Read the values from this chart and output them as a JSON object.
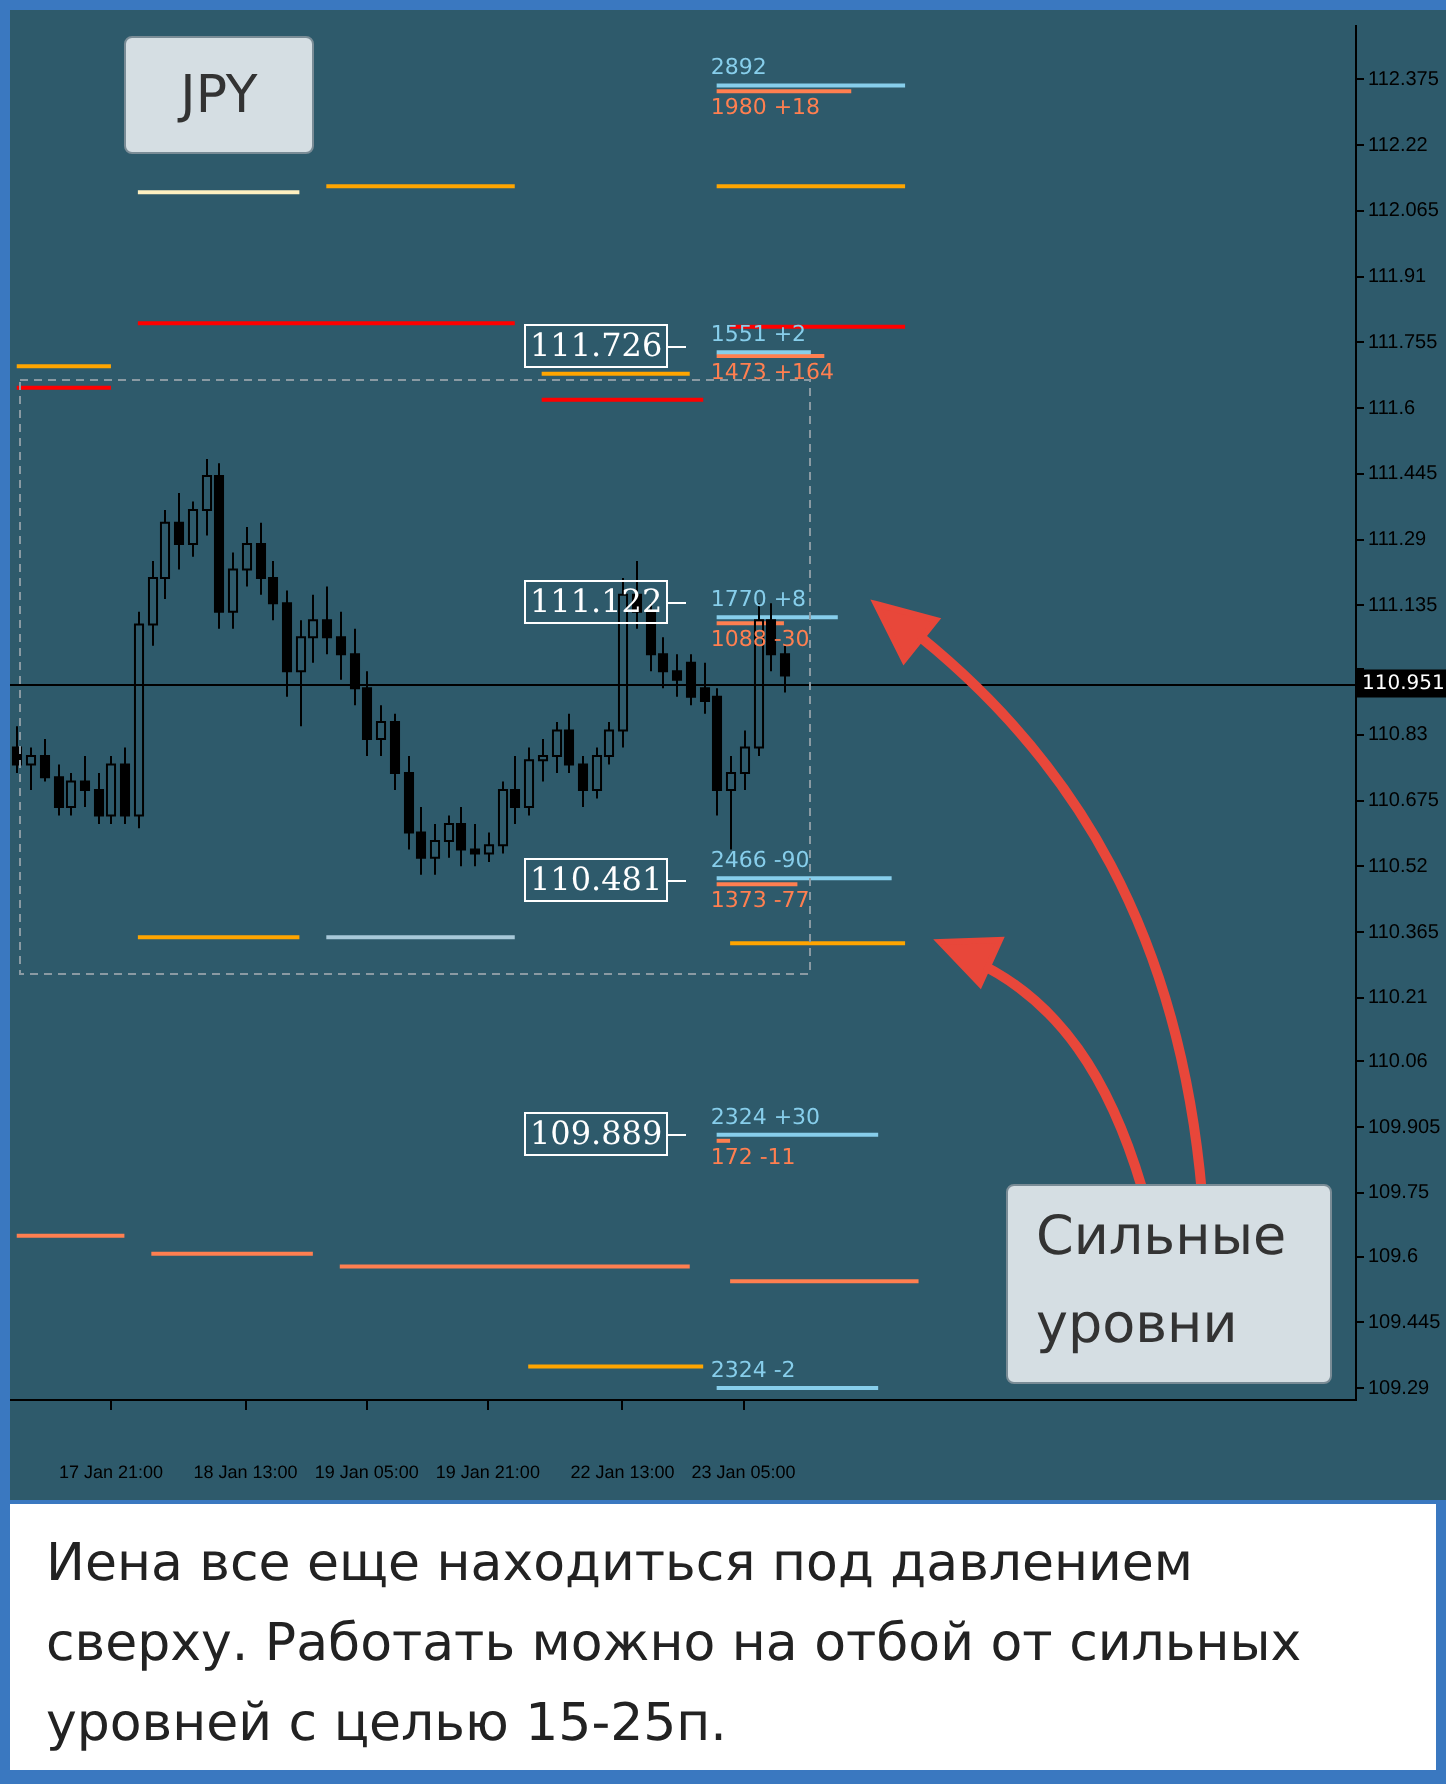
{
  "chart_data": {
    "type": "candlestick",
    "title": "JPY",
    "color": "#000000",
    "categories": [
      null,
      null,
      null,
      null,
      null,
      null,
      null,
      "17 Jan 21:00",
      null,
      null,
      null,
      null,
      null,
      null,
      null,
      null,
      null,
      "18 Jan 13:00",
      null,
      null,
      null,
      null,
      null,
      null,
      null,
      null,
      "19 Jan 05:00",
      null,
      null,
      null,
      null,
      null,
      null,
      null,
      null,
      "19 Jan 21:00",
      null,
      null,
      null,
      null,
      null,
      null,
      null,
      null,
      null,
      "22 Jan 13:00",
      null,
      null,
      null,
      null,
      null,
      null,
      null,
      null,
      "23 Jan 05:00",
      null,
      null,
      null,
      null,
      null,
      null,
      null,
      null,
      null,
      null,
      null,
      null,
      null,
      null,
      null,
      null,
      null,
      null,
      null,
      null,
      null,
      null,
      null,
      null,
      null,
      null,
      null,
      null,
      null,
      null,
      null,
      null,
      null,
      null,
      null,
      null,
      null,
      null,
      null,
      null,
      null,
      null,
      null,
      null,
      null
    ],
    "ohlc": [
      [
        110.8,
        110.85,
        110.74,
        110.76
      ],
      [
        110.76,
        110.8,
        110.7,
        110.78
      ],
      [
        110.78,
        110.82,
        110.72,
        110.73
      ],
      [
        110.73,
        110.76,
        110.64,
        110.66
      ],
      [
        110.66,
        110.74,
        110.64,
        110.72
      ],
      [
        110.72,
        110.78,
        110.66,
        110.7
      ],
      [
        110.7,
        110.74,
        110.62,
        110.64
      ],
      [
        110.64,
        110.78,
        110.62,
        110.76
      ],
      [
        110.76,
        110.8,
        110.62,
        110.64
      ],
      [
        110.64,
        111.12,
        110.61,
        111.09
      ],
      [
        111.09,
        111.24,
        111.04,
        111.2
      ],
      [
        111.2,
        111.36,
        111.15,
        111.33
      ],
      [
        111.33,
        111.4,
        111.22,
        111.28
      ],
      [
        111.28,
        111.38,
        111.25,
        111.36
      ],
      [
        111.36,
        111.48,
        111.3,
        111.44
      ],
      [
        111.44,
        111.47,
        111.08,
        111.12
      ],
      [
        111.12,
        111.26,
        111.08,
        111.22
      ],
      [
        111.22,
        111.32,
        111.18,
        111.28
      ],
      [
        111.28,
        111.33,
        111.16,
        111.2
      ],
      [
        111.2,
        111.24,
        111.1,
        111.14
      ],
      [
        111.14,
        111.17,
        110.92,
        110.98
      ],
      [
        110.98,
        111.1,
        110.85,
        111.06
      ],
      [
        111.06,
        111.16,
        111.0,
        111.1
      ],
      [
        111.1,
        111.18,
        111.02,
        111.06
      ],
      [
        111.06,
        111.12,
        110.96,
        111.02
      ],
      [
        111.02,
        111.08,
        110.9,
        110.94
      ],
      [
        110.94,
        110.98,
        110.78,
        110.82
      ],
      [
        110.82,
        110.9,
        110.78,
        110.86
      ],
      [
        110.86,
        110.88,
        110.7,
        110.74
      ],
      [
        110.74,
        110.78,
        110.56,
        110.6
      ],
      [
        110.6,
        110.66,
        110.5,
        110.54
      ],
      [
        110.54,
        110.62,
        110.5,
        110.58
      ],
      [
        110.58,
        110.64,
        110.54,
        110.62
      ],
      [
        110.62,
        110.66,
        110.52,
        110.56
      ],
      [
        110.56,
        110.62,
        110.52,
        110.55
      ],
      [
        110.55,
        110.6,
        110.53,
        110.57
      ],
      [
        110.57,
        110.72,
        110.55,
        110.7
      ],
      [
        110.7,
        110.78,
        110.62,
        110.66
      ],
      [
        110.66,
        110.8,
        110.64,
        110.77
      ],
      [
        110.77,
        110.82,
        110.72,
        110.78
      ],
      [
        110.78,
        110.86,
        110.74,
        110.84
      ],
      [
        110.84,
        110.88,
        110.74,
        110.76
      ],
      [
        110.76,
        110.78,
        110.66,
        110.7
      ],
      [
        110.7,
        110.8,
        110.68,
        110.78
      ],
      [
        110.78,
        110.86,
        110.76,
        110.84
      ],
      [
        110.84,
        111.2,
        110.8,
        111.16
      ],
      [
        111.16,
        111.24,
        111.08,
        111.12
      ],
      [
        111.12,
        111.14,
        110.98,
        111.02
      ],
      [
        111.02,
        111.06,
        110.94,
        110.98
      ],
      [
        110.98,
        111.02,
        110.92,
        110.96
      ],
      [
        111.0,
        111.02,
        110.9,
        110.92
      ],
      [
        110.94,
        111.0,
        110.88,
        110.91
      ],
      [
        110.92,
        110.94,
        110.64,
        110.7
      ],
      [
        110.7,
        110.78,
        110.56,
        110.74
      ],
      [
        110.74,
        110.84,
        110.7,
        110.8
      ],
      [
        110.8,
        111.14,
        110.78,
        111.1
      ],
      [
        111.1,
        111.14,
        110.98,
        111.02
      ],
      [
        111.02,
        111.04,
        110.93,
        110.97
      ],
      null,
      null,
      null,
      null,
      null,
      null,
      null,
      null,
      null,
      null,
      null,
      null,
      null,
      null,
      null,
      null,
      null,
      null,
      null,
      null,
      null,
      null,
      null,
      null,
      null,
      null,
      null,
      null,
      null,
      null,
      null,
      null,
      null,
      null,
      null,
      null,
      null,
      null,
      null,
      null,
      null,
      null
    ],
    "series": [
      {
        "type": "line",
        "color": "#ffa500",
        "values": [
          111.699,
          111.699,
          111.699,
          111.699,
          111.699,
          111.699,
          111.699,
          111.699,
          null,
          110.353,
          110.353,
          110.353,
          110.353,
          110.353,
          110.353,
          110.353,
          110.353,
          110.353,
          110.353,
          110.353,
          110.353,
          110.353,
          null,
          112.123,
          112.123,
          112.123,
          112.123,
          112.123,
          112.123,
          112.123,
          112.123,
          112.123,
          112.123,
          112.123,
          112.123,
          112.123,
          112.123,
          112.123,
          null,
          111.681,
          111.681,
          111.681,
          111.681,
          111.681,
          111.681,
          111.681,
          111.681,
          111.681,
          111.681,
          111.681,
          111.681,
          null,
          112.123,
          112.123,
          112.123,
          112.123,
          112.123,
          112.123,
          112.123,
          112.123,
          112.123,
          112.123,
          112.123,
          112.123,
          112.123,
          112.123,
          112.123,
          null,
          null,
          null,
          null,
          null,
          null,
          null,
          null,
          null,
          null,
          null,
          null,
          null,
          null,
          null,
          null,
          null,
          null,
          null,
          null,
          null,
          null,
          null,
          null,
          null,
          null,
          null,
          null,
          null,
          null,
          null,
          null,
          null
        ]
      },
      {
        "type": "line",
        "color": "#ffa500",
        "values": [
          null,
          null,
          null,
          null,
          null,
          null,
          null,
          null,
          null,
          null,
          null,
          null,
          null,
          null,
          null,
          null,
          null,
          null,
          null,
          null,
          null,
          null,
          null,
          null,
          null,
          null,
          null,
          null,
          null,
          null,
          null,
          null,
          null,
          null,
          null,
          null,
          null,
          null,
          109.341,
          109.341,
          109.341,
          109.341,
          109.341,
          109.341,
          109.341,
          109.341,
          109.341,
          109.341,
          109.341,
          109.341,
          109.341,
          109.341,
          null,
          110.339,
          110.339,
          110.339,
          110.339,
          110.339,
          110.339,
          110.339,
          110.339,
          110.339,
          110.339,
          110.339,
          110.339,
          110.339,
          110.339,
          null,
          null,
          null,
          null,
          null,
          null,
          null,
          null,
          null,
          null,
          null,
          null,
          null,
          null,
          null,
          null,
          null,
          null,
          null,
          null,
          null,
          null,
          null,
          null,
          null,
          null,
          null,
          null,
          null,
          null,
          null,
          null,
          null
        ]
      },
      {
        "type": "line",
        "color": "#ff0000",
        "values": [
          111.648,
          111.648,
          111.648,
          111.648,
          111.648,
          111.648,
          111.648,
          111.648,
          null,
          111.8,
          111.8,
          111.8,
          111.8,
          111.8,
          111.8,
          111.8,
          111.8,
          111.8,
          111.8,
          111.8,
          111.8,
          111.8,
          111.8,
          111.8,
          111.8,
          111.8,
          111.8,
          111.8,
          111.8,
          111.8,
          111.8,
          111.8,
          111.8,
          111.8,
          111.8,
          111.8,
          111.8,
          111.8,
          null,
          111.62,
          111.62,
          111.62,
          111.62,
          111.62,
          111.62,
          111.62,
          111.62,
          111.62,
          111.62,
          111.62,
          111.62,
          111.62,
          null,
          111.792,
          111.792,
          111.792,
          111.792,
          111.792,
          111.792,
          111.792,
          111.792,
          111.792,
          111.792,
          111.792,
          111.792,
          111.792,
          111.792,
          null,
          null,
          null,
          null,
          null,
          null,
          null,
          null,
          null,
          null,
          null,
          null,
          null,
          null,
          null,
          null,
          null,
          null,
          null,
          null,
          null,
          null,
          null,
          null,
          null,
          null,
          null,
          null,
          null,
          null,
          null,
          null,
          null
        ]
      },
      {
        "type": "line",
        "color": "#fff0c0",
        "values": [
          null,
          null,
          null,
          null,
          null,
          null,
          null,
          null,
          null,
          112.109,
          112.109,
          112.109,
          112.109,
          112.109,
          112.109,
          112.109,
          112.109,
          112.109,
          112.109,
          112.109,
          112.109,
          112.109,
          null,
          null,
          null,
          null,
          null,
          null,
          null,
          null,
          null,
          null,
          null,
          null,
          null,
          null,
          null,
          null,
          null,
          null,
          null,
          null,
          null,
          null,
          null,
          null,
          null,
          null,
          null,
          null,
          null,
          null,
          null,
          null,
          null,
          null,
          null,
          null,
          null,
          null,
          null,
          null,
          null,
          null,
          null,
          null,
          null,
          null,
          null,
          null,
          null,
          null,
          null,
          null,
          null,
          null,
          null,
          null,
          null,
          null,
          null,
          null,
          null,
          null,
          null,
          null,
          null,
          null,
          null,
          null,
          null,
          null,
          null,
          null,
          null,
          null,
          null,
          null,
          null,
          null
        ]
      },
      {
        "type": "line",
        "color": "#a8c8d8",
        "values": [
          null,
          null,
          null,
          null,
          null,
          null,
          null,
          null,
          null,
          null,
          null,
          null,
          null,
          null,
          null,
          null,
          null,
          null,
          null,
          null,
          null,
          null,
          null,
          110.353,
          110.353,
          110.353,
          110.353,
          110.353,
          110.353,
          110.353,
          110.353,
          110.353,
          110.353,
          110.353,
          110.353,
          110.353,
          110.353,
          110.353,
          null,
          null,
          null,
          null,
          null,
          null,
          null,
          null,
          null,
          null,
          null,
          null,
          null,
          null,
          null,
          null,
          null,
          null,
          null,
          null,
          null,
          null,
          null,
          null,
          null,
          null,
          null,
          null,
          null,
          null,
          null,
          null,
          null,
          null,
          null,
          null,
          null,
          null,
          null,
          null,
          null,
          null,
          null,
          null,
          null,
          null,
          null,
          null,
          null,
          null,
          null,
          null,
          null,
          null,
          null,
          null,
          null,
          null,
          null,
          null,
          null,
          null
        ]
      },
      {
        "type": "line",
        "color": "#87ceeb",
        "values": [
          null,
          null,
          null,
          null,
          null,
          null,
          null,
          null,
          null,
          null,
          null,
          null,
          null,
          null,
          null,
          null,
          null,
          null,
          null,
          null,
          null,
          null,
          null,
          null,
          null,
          null,
          null,
          null,
          null,
          null,
          null,
          null,
          null,
          null,
          null,
          null,
          null,
          null,
          null,
          null,
          null,
          null,
          null,
          null,
          null,
          null,
          null,
          null,
          null,
          null,
          null,
          null,
          112.361,
          112.361,
          112.361,
          112.361,
          112.361,
          112.361,
          112.361,
          112.361,
          112.361,
          112.361,
          112.361,
          112.361,
          112.361,
          112.361,
          112.361,
          null,
          null,
          null,
          null,
          null,
          null,
          null,
          null,
          null,
          null,
          null,
          null,
          null,
          null,
          null,
          null,
          null,
          null,
          null,
          null,
          null,
          null,
          null,
          null,
          null,
          null,
          null,
          null,
          null,
          null,
          null,
          null,
          null
        ]
      },
      {
        "type": "line",
        "color": "#87ceeb",
        "values": [
          null,
          null,
          null,
          null,
          null,
          null,
          null,
          null,
          null,
          null,
          null,
          null,
          null,
          null,
          null,
          null,
          null,
          null,
          null,
          null,
          null,
          null,
          null,
          null,
          null,
          null,
          null,
          null,
          null,
          null,
          null,
          null,
          null,
          null,
          null,
          null,
          null,
          null,
          null,
          null,
          null,
          null,
          null,
          null,
          null,
          null,
          null,
          null,
          null,
          null,
          null,
          null,
          111.732,
          111.732,
          111.732,
          111.732,
          111.732,
          111.732,
          111.732,
          111.732,
          null,
          null,
          null,
          null,
          null,
          null,
          null,
          null,
          null,
          null,
          null,
          null,
          null,
          null,
          null,
          null,
          null,
          null,
          null,
          null,
          null,
          null,
          null,
          null,
          null,
          null,
          null,
          null,
          null,
          null,
          null,
          null,
          null,
          null,
          null,
          null,
          null,
          null,
          null,
          null
        ]
      },
      {
        "type": "line",
        "color": "#87ceeb",
        "values": [
          null,
          null,
          null,
          null,
          null,
          null,
          null,
          null,
          null,
          null,
          null,
          null,
          null,
          null,
          null,
          null,
          null,
          null,
          null,
          null,
          null,
          null,
          null,
          null,
          null,
          null,
          null,
          null,
          null,
          null,
          null,
          null,
          null,
          null,
          null,
          null,
          null,
          null,
          null,
          null,
          null,
          null,
          null,
          null,
          null,
          null,
          null,
          null,
          null,
          null,
          null,
          null,
          111.107,
          111.107,
          111.107,
          111.107,
          111.107,
          111.107,
          111.107,
          111.107,
          111.107,
          111.107,
          null,
          null,
          null,
          null,
          null,
          null,
          null,
          null,
          null,
          null,
          null,
          null,
          null,
          null,
          null,
          null,
          null,
          null,
          null,
          null,
          null,
          null,
          null,
          null,
          null,
          null,
          null,
          null,
          null,
          null,
          null,
          null,
          null,
          null,
          null,
          null,
          null,
          null
        ]
      },
      {
        "type": "line",
        "color": "#87ceeb",
        "values": [
          null,
          null,
          null,
          null,
          null,
          null,
          null,
          null,
          null,
          null,
          null,
          null,
          null,
          null,
          null,
          null,
          null,
          null,
          null,
          null,
          null,
          null,
          null,
          null,
          null,
          null,
          null,
          null,
          null,
          null,
          null,
          null,
          null,
          null,
          null,
          null,
          null,
          null,
          null,
          null,
          null,
          null,
          null,
          null,
          null,
          null,
          null,
          null,
          null,
          null,
          null,
          null,
          110.492,
          110.492,
          110.492,
          110.492,
          110.492,
          110.492,
          110.492,
          110.492,
          110.492,
          110.492,
          110.492,
          110.492,
          110.492,
          110.492,
          null,
          null,
          null,
          null,
          null,
          null,
          null,
          null,
          null,
          null,
          null,
          null,
          null,
          null,
          null,
          null,
          null,
          null,
          null,
          null,
          null,
          null,
          null,
          null,
          null,
          null,
          null,
          null,
          null,
          null,
          null,
          null,
          null,
          null
        ]
      },
      {
        "type": "line",
        "color": "#87ceeb",
        "values": [
          null,
          null,
          null,
          null,
          null,
          null,
          null,
          null,
          null,
          null,
          null,
          null,
          null,
          null,
          null,
          null,
          null,
          null,
          null,
          null,
          null,
          null,
          null,
          null,
          null,
          null,
          null,
          null,
          null,
          null,
          null,
          null,
          null,
          null,
          null,
          null,
          null,
          null,
          null,
          null,
          null,
          null,
          null,
          null,
          null,
          null,
          null,
          null,
          null,
          null,
          null,
          null,
          109.887,
          109.887,
          109.887,
          109.887,
          109.887,
          109.887,
          109.887,
          109.887,
          109.887,
          109.887,
          109.887,
          109.887,
          109.887,
          null,
          null,
          null,
          null,
          null,
          null,
          null,
          null,
          null,
          null,
          null,
          null,
          null,
          null,
          null,
          null,
          null,
          null,
          null,
          null,
          null,
          null,
          null,
          null,
          null,
          null,
          null,
          null,
          null,
          null,
          null,
          null,
          null,
          null,
          null
        ]
      },
      {
        "type": "line",
        "color": "#87ceeb",
        "values": [
          null,
          null,
          null,
          null,
          null,
          null,
          null,
          null,
          null,
          null,
          null,
          null,
          null,
          null,
          null,
          null,
          null,
          null,
          null,
          null,
          null,
          null,
          null,
          null,
          null,
          null,
          null,
          null,
          null,
          null,
          null,
          null,
          null,
          null,
          null,
          null,
          null,
          null,
          null,
          null,
          null,
          null,
          null,
          null,
          null,
          null,
          null,
          null,
          null,
          null,
          null,
          null,
          109.29,
          109.29,
          109.29,
          109.29,
          109.29,
          109.29,
          109.29,
          109.29,
          109.29,
          109.29,
          109.29,
          109.29,
          109.29,
          null,
          null,
          null,
          null,
          null,
          null,
          null,
          null,
          null,
          null,
          null,
          null,
          null,
          null,
          null,
          null,
          null,
          null,
          null,
          null,
          null,
          null,
          null,
          null,
          null,
          null,
          null,
          null,
          null,
          null,
          null,
          null,
          null,
          null,
          null
        ]
      },
      {
        "type": "line",
        "color": "#ff7f50",
        "values": [
          109.649,
          109.649,
          109.649,
          109.649,
          109.649,
          109.649,
          109.649,
          109.649,
          109.649,
          null,
          109.607,
          109.607,
          109.607,
          109.607,
          109.607,
          109.607,
          109.607,
          109.607,
          109.607,
          109.607,
          109.607,
          109.607,
          109.607,
          null,
          109.577,
          109.577,
          109.577,
          109.577,
          109.577,
          109.577,
          109.577,
          109.577,
          109.577,
          109.577,
          109.577,
          109.577,
          109.577,
          109.577,
          109.577,
          109.577,
          109.577,
          109.577,
          109.577,
          109.577,
          109.577,
          109.577,
          109.577,
          109.577,
          109.577,
          109.577,
          109.577,
          null,
          112.347,
          112.347,
          112.347,
          112.347,
          112.347,
          112.347,
          112.347,
          112.347,
          112.347,
          112.347,
          112.347,
          null,
          null,
          null,
          null,
          null,
          null,
          null,
          null,
          null,
          null,
          null,
          null,
          null,
          null,
          null,
          null,
          null,
          null,
          null,
          null,
          null,
          null,
          null,
          null,
          null,
          null,
          null,
          null,
          null,
          null,
          null,
          null,
          null,
          null,
          null,
          null,
          null
        ]
      },
      {
        "type": "line",
        "color": "#ff7f50",
        "values": [
          null,
          null,
          null,
          null,
          null,
          null,
          null,
          null,
          null,
          null,
          null,
          null,
          null,
          null,
          null,
          null,
          null,
          null,
          null,
          null,
          null,
          null,
          null,
          null,
          null,
          null,
          null,
          null,
          null,
          null,
          null,
          null,
          null,
          null,
          null,
          null,
          null,
          null,
          null,
          null,
          null,
          null,
          null,
          null,
          null,
          null,
          null,
          null,
          null,
          null,
          null,
          null,
          111.723,
          111.723,
          111.723,
          111.723,
          111.723,
          111.723,
          111.723,
          111.723,
          111.723,
          null,
          null,
          null,
          null,
          null,
          null,
          null,
          null,
          null,
          null,
          null,
          null,
          null,
          null,
          null,
          null,
          null,
          null,
          null,
          null,
          null,
          null,
          null,
          null,
          null,
          null,
          null,
          null,
          null,
          null,
          null,
          null,
          null,
          null,
          null,
          null,
          null,
          null,
          null
        ]
      },
      {
        "type": "line",
        "color": "#ff7f50",
        "values": [
          null,
          null,
          null,
          null,
          null,
          null,
          null,
          null,
          null,
          null,
          null,
          null,
          null,
          null,
          null,
          null,
          null,
          null,
          null,
          null,
          null,
          null,
          null,
          null,
          null,
          null,
          null,
          null,
          null,
          null,
          null,
          null,
          null,
          null,
          null,
          null,
          null,
          null,
          null,
          null,
          null,
          null,
          null,
          null,
          null,
          null,
          null,
          null,
          null,
          null,
          null,
          null,
          111.093,
          111.093,
          111.093,
          111.093,
          111.093,
          111.093,
          null,
          null,
          null,
          null,
          null,
          null,
          null,
          null,
          null,
          null,
          null,
          null,
          null,
          null,
          null,
          null,
          null,
          null,
          null,
          null,
          null,
          null,
          null,
          null,
          null,
          null,
          null,
          null,
          null,
          null,
          null,
          null,
          null,
          null,
          null,
          null,
          null,
          null,
          null,
          null,
          null,
          null
        ]
      },
      {
        "type": "line",
        "color": "#ff7f50",
        "values": [
          null,
          null,
          null,
          null,
          null,
          null,
          null,
          null,
          null,
          null,
          null,
          null,
          null,
          null,
          null,
          null,
          null,
          null,
          null,
          null,
          null,
          null,
          null,
          null,
          null,
          null,
          null,
          null,
          null,
          null,
          null,
          null,
          null,
          null,
          null,
          null,
          null,
          null,
          null,
          null,
          null,
          null,
          null,
          null,
          null,
          null,
          null,
          null,
          null,
          null,
          null,
          null,
          110.478,
          110.478,
          110.478,
          110.478,
          110.478,
          110.478,
          110.478,
          null,
          null,
          null,
          null,
          null,
          null,
          null,
          null,
          null,
          null,
          null,
          null,
          null,
          null,
          null,
          null,
          null,
          null,
          null,
          null,
          null,
          null,
          null,
          null,
          null,
          null,
          null,
          null,
          null,
          null,
          null,
          null,
          null,
          null,
          null,
          null,
          null,
          null,
          null,
          null,
          null
        ]
      },
      {
        "type": "line",
        "color": "#ff7f50",
        "values": [
          null,
          null,
          null,
          null,
          null,
          null,
          null,
          null,
          null,
          null,
          null,
          null,
          null,
          null,
          null,
          null,
          null,
          null,
          null,
          null,
          null,
          null,
          null,
          null,
          null,
          null,
          null,
          null,
          null,
          null,
          null,
          null,
          null,
          null,
          null,
          null,
          null,
          null,
          null,
          null,
          null,
          null,
          null,
          null,
          null,
          null,
          null,
          null,
          null,
          null,
          null,
          null,
          109.873,
          109.873,
          null,
          null,
          null,
          null,
          null,
          null,
          null,
          null,
          null,
          null,
          null,
          null,
          null,
          null,
          null,
          null,
          null,
          null,
          null,
          null,
          null,
          null,
          null,
          null,
          null,
          null,
          null,
          null,
          null,
          null,
          null,
          null,
          null,
          null,
          null,
          null,
          null,
          null,
          null,
          null,
          null,
          null,
          null,
          null,
          null,
          null
        ]
      },
      {
        "type": "line",
        "color": "#ff7f50",
        "values": [
          null,
          null,
          null,
          null,
          null,
          null,
          null,
          null,
          null,
          null,
          null,
          null,
          null,
          null,
          null,
          null,
          null,
          null,
          null,
          null,
          null,
          null,
          null,
          null,
          null,
          null,
          null,
          null,
          null,
          null,
          null,
          null,
          null,
          null,
          null,
          null,
          null,
          null,
          null,
          null,
          null,
          null,
          null,
          null,
          null,
          null,
          null,
          null,
          null,
          null,
          null,
          null,
          null,
          109.542,
          109.542,
          109.542,
          109.542,
          109.542,
          109.542,
          109.542,
          109.542,
          109.542,
          109.542,
          109.542,
          109.542,
          109.542,
          109.542,
          109.542,
          null,
          null,
          null,
          null,
          null,
          null,
          null,
          null,
          null,
          null,
          null,
          null,
          null,
          null,
          null,
          null,
          null,
          null,
          null,
          null,
          null,
          null,
          null,
          null,
          null,
          null,
          null,
          null,
          null,
          null,
          null,
          null
        ]
      }
    ],
    "ylim": [
      109.262,
      112.501
    ],
    "yticks": [
      112.375,
      112.22,
      112.065,
      111.91,
      111.755,
      111.6,
      111.445,
      111.29,
      111.135,
      {
        "value": 110.985,
        "label": null
      },
      110.83,
      110.675,
      110.52,
      110.365,
      110.21,
      110.06,
      109.905,
      109.75,
      109.6,
      109.445,
      109.29
    ],
    "ref_lines": [
      {
        "axis": "y",
        "value": 110.951,
        "label": "110.951",
        "color": "#000000"
      }
    ],
    "annotations": [
      {
        "text": "2892",
        "y": 112.361
      },
      {
        "text": "1980 +18",
        "y": 112.347
      },
      {
        "text": "1551 +2",
        "y": 111.732
      },
      {
        "text": "1473 +164",
        "y": 111.723
      },
      {
        "text": "1770 +8",
        "y": 111.107
      },
      {
        "text": "1088 -30",
        "y": 111.093
      },
      {
        "text": "2466 -90",
        "y": 110.492
      },
      {
        "text": "1373 -77",
        "y": 110.478
      },
      {
        "text": "2324 +30",
        "y": 109.887
      },
      {
        "text": "172 -11",
        "y": 109.873
      },
      {
        "text": "2324 -2",
        "y": 109.29
      },
      "111.726",
      "111.122",
      "110.481",
      "109.889",
      "Сильные уровни",
      "Иена все еще находиться под давлением сверху. Работать можно на отбой от сильных уровней с целью 15-25п."
    ]
  }
}
